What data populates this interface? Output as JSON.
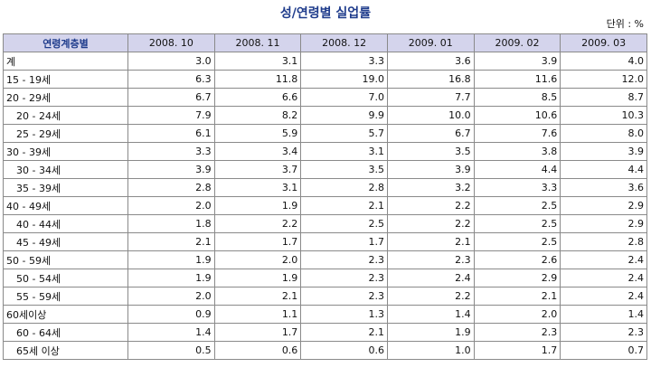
{
  "title": "성/연령별 실업률",
  "unit_label": "단위 : %",
  "table": {
    "corner_label": "연령계층별",
    "columns": [
      "2008. 10",
      "2008. 11",
      "2008. 12",
      "2009. 01",
      "2009. 02",
      "2009. 03"
    ],
    "rows": [
      {
        "label": "계",
        "indent": false,
        "values": [
          "3.0",
          "3.1",
          "3.3",
          "3.6",
          "3.9",
          "4.0"
        ]
      },
      {
        "label": "15 - 19세",
        "indent": false,
        "values": [
          "6.3",
          "11.8",
          "19.0",
          "16.8",
          "11.6",
          "12.0"
        ]
      },
      {
        "label": "20 - 29세",
        "indent": false,
        "values": [
          "6.7",
          "6.6",
          "7.0",
          "7.7",
          "8.5",
          "8.7"
        ]
      },
      {
        "label": "20 - 24세",
        "indent": true,
        "values": [
          "7.9",
          "8.2",
          "9.9",
          "10.0",
          "10.6",
          "10.3"
        ]
      },
      {
        "label": "25 - 29세",
        "indent": true,
        "values": [
          "6.1",
          "5.9",
          "5.7",
          "6.7",
          "7.6",
          "8.0"
        ]
      },
      {
        "label": "30 - 39세",
        "indent": false,
        "values": [
          "3.3",
          "3.4",
          "3.1",
          "3.5",
          "3.8",
          "3.9"
        ]
      },
      {
        "label": "30 - 34세",
        "indent": true,
        "values": [
          "3.9",
          "3.7",
          "3.5",
          "3.9",
          "4.4",
          "4.4"
        ]
      },
      {
        "label": "35 - 39세",
        "indent": true,
        "values": [
          "2.8",
          "3.1",
          "2.8",
          "3.2",
          "3.3",
          "3.6"
        ]
      },
      {
        "label": "40 - 49세",
        "indent": false,
        "values": [
          "2.0",
          "1.9",
          "2.1",
          "2.2",
          "2.5",
          "2.9"
        ]
      },
      {
        "label": "40 - 44세",
        "indent": true,
        "values": [
          "1.8",
          "2.2",
          "2.5",
          "2.2",
          "2.5",
          "2.9"
        ]
      },
      {
        "label": "45 - 49세",
        "indent": true,
        "values": [
          "2.1",
          "1.7",
          "1.7",
          "2.1",
          "2.5",
          "2.8"
        ]
      },
      {
        "label": "50 - 59세",
        "indent": false,
        "values": [
          "1.9",
          "2.0",
          "2.3",
          "2.3",
          "2.6",
          "2.4"
        ]
      },
      {
        "label": "50 - 54세",
        "indent": true,
        "values": [
          "1.9",
          "1.9",
          "2.3",
          "2.4",
          "2.9",
          "2.4"
        ]
      },
      {
        "label": "55 - 59세",
        "indent": true,
        "values": [
          "2.0",
          "2.1",
          "2.3",
          "2.2",
          "2.1",
          "2.4"
        ]
      },
      {
        "label": "60세이상",
        "indent": false,
        "values": [
          "0.9",
          "1.1",
          "1.3",
          "1.4",
          "2.0",
          "1.4"
        ]
      },
      {
        "label": "60 - 64세",
        "indent": true,
        "values": [
          "1.4",
          "1.7",
          "2.1",
          "1.9",
          "2.3",
          "2.3"
        ]
      },
      {
        "label": "65세 이상",
        "indent": true,
        "values": [
          "0.5",
          "0.6",
          "0.6",
          "1.0",
          "1.7",
          "0.7"
        ]
      }
    ]
  }
}
